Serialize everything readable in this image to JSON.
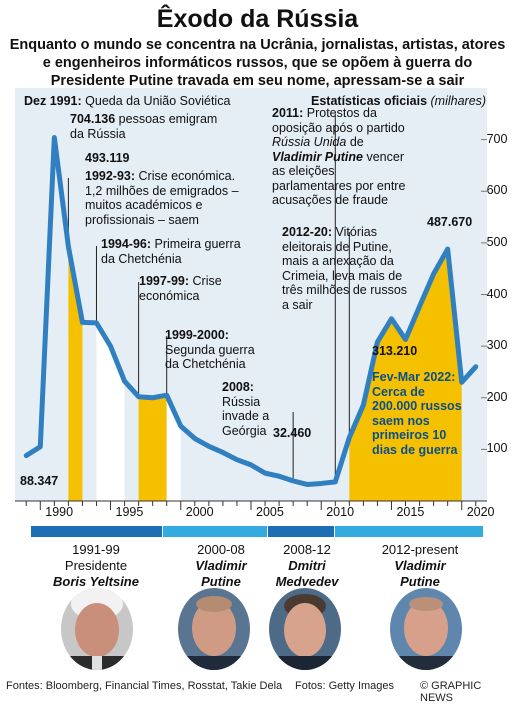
{
  "title": "Êxodo da Rússia",
  "subtitle": "Enquanto o mundo se concentra na Ucrânia, jornalistas, artistas, atores e engenheiros informáticos russos, que se opõem à guerra do Presidente Putine travada em seu nome, apressam-se a sair",
  "stats_label": "Estatísticas oficiais",
  "stats_unit": "(milhares)",
  "chart_data": {
    "type": "line",
    "x": [
      1989,
      1990,
      1991,
      1992,
      1993,
      1994,
      1995,
      1996,
      1997,
      1998,
      1999,
      2000,
      2001,
      2002,
      2003,
      2004,
      2005,
      2006,
      2007,
      2008,
      2009,
      2010,
      2011,
      2012,
      2013,
      2014,
      2015,
      2016,
      2017,
      2018,
      2019,
      2020,
      2021
    ],
    "values": [
      88,
      105,
      704,
      493,
      346,
      345,
      300,
      232,
      202,
      200,
      205,
      145,
      121,
      106,
      94,
      80,
      70,
      54,
      48,
      39,
      32,
      34,
      37,
      123,
      186,
      308,
      353,
      313,
      377,
      440,
      488,
      230,
      260
    ],
    "xlim": [
      1988.2,
      2021.8
    ],
    "ylim": [
      0,
      800
    ],
    "x_ticks": [
      1990,
      1995,
      2000,
      2005,
      2010,
      2015,
      2020
    ],
    "y_ticks": [
      100,
      200,
      300,
      400,
      500,
      600,
      700
    ],
    "ylabel": "(milhares)",
    "highlight_periods": [
      [
        1992,
        1993
      ],
      [
        1994,
        1996
      ],
      [
        1997,
        1999
      ],
      [
        1999,
        2000
      ],
      [
        2012,
        2020
      ]
    ]
  },
  "y_tick_labels": [
    "100",
    "200",
    "300",
    "400",
    "500",
    "600",
    "700"
  ],
  "x_tick_labels": [
    "1990",
    "1995",
    "2000",
    "2005",
    "2010",
    "2015",
    "2020"
  ],
  "annotations": {
    "a1991_head": "Dez 1991:",
    "a1991_text": " Queda da União Soviética",
    "v704_head": "704.136",
    "v704_text": " pessoas emigram da Rússia",
    "v493": "493.119",
    "a9293_head": "1992-93:",
    "a9293_text": " Crise económica. 1,2 milhões de emigrados – muitos académicos e profissionais – saem",
    "a9496_head": "1994-96:",
    "a9496_text": " Primeira guerra da Chetchénia",
    "a9799_head": "1997-99:",
    "a9799_text": " Crise económica",
    "a9900_head": "1999-2000:",
    "a9900_text": " Segunda guerra da Chetchénia",
    "a2008_head": "2008:",
    "a2008_text": " Rússia invade a Geórgia",
    "a2011_head": "2011:",
    "a2011_text1": " Protestos da oposição após o partido ",
    "a2011_party": "Rússia Unida",
    "a2011_text2": " de ",
    "a2011_name": "Vladimir Putine",
    "a2011_text3": " vencer as eleições parlamentares por entre acusações de fraude",
    "a1220_head": "2012-20:",
    "a1220_text": " Vitórias eleitorais de Putine, mais a anexação da Crimeia, leva mais de três milhões de russos a sair",
    "v487": "487.670",
    "v313": "313.210",
    "v32": "32.460",
    "v88": "88.347",
    "a2022": "Fev-Mar 2022: Cerca de 200.000 russos saem nos primeiros 10 dias de guerra"
  },
  "presidents": [
    {
      "period": "1991-99",
      "role": "Presidente",
      "name": "Boris Yeltsine"
    },
    {
      "period": "2000-08",
      "role": "Vladimir",
      "name": "Putine"
    },
    {
      "period": "2008-12",
      "role": "Dmitri",
      "name": "Medvedev"
    },
    {
      "period": "2012-present",
      "role": "Vladimir",
      "name": "Putine"
    }
  ],
  "footer": {
    "sources": "Fontes: Bloomberg, Financial Times, Rosstat, Takie Dela",
    "photos": "Fotos: Getty Images",
    "credit": "© GRAPHIC NEWS"
  },
  "colors": {
    "line": "#2f7fc1",
    "highlight": "#f5c000",
    "background": "#e5edf5",
    "bar_yeltsin": "#1d6fb5",
    "bar_putin": "#33aae0",
    "bar_medvedev": "#1d6fb5",
    "bar_putin2": "#33aae0"
  }
}
